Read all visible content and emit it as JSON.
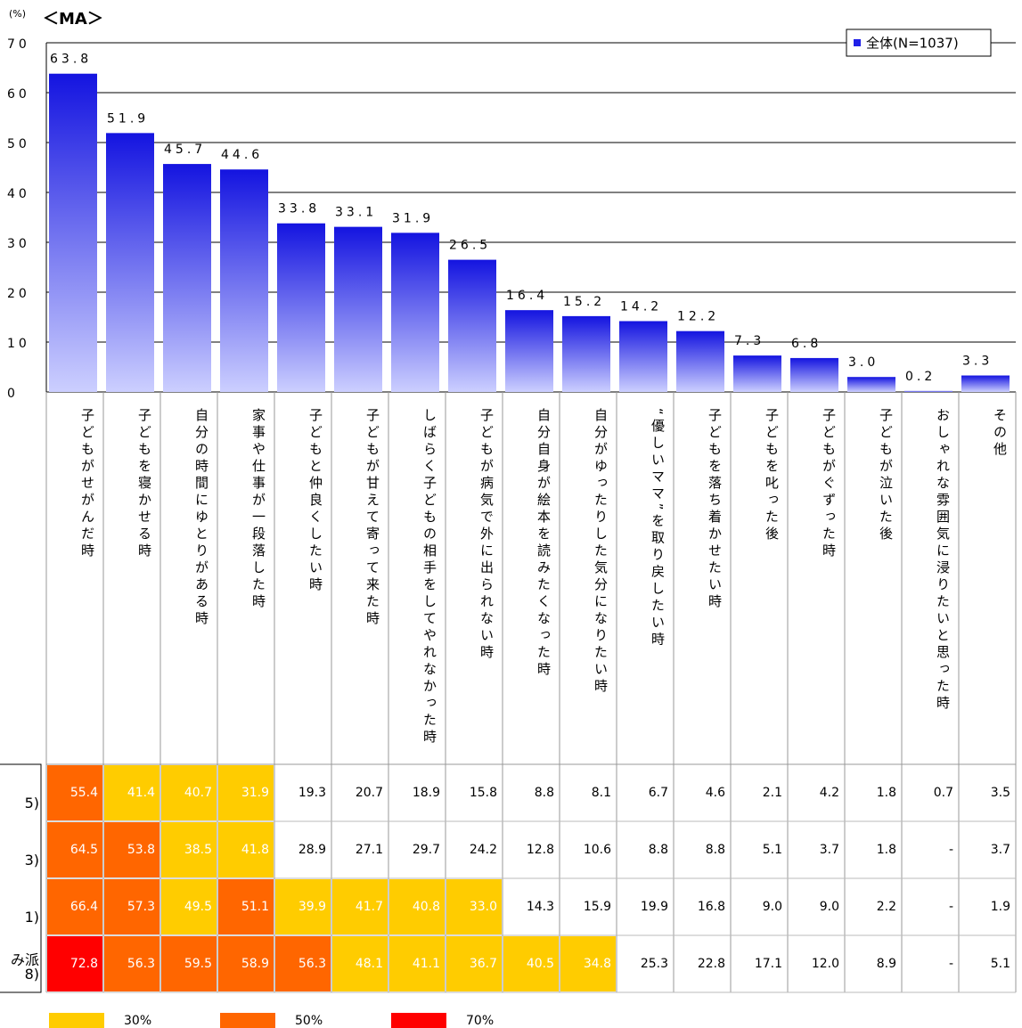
{
  "chart_data": {
    "type": "bar",
    "unit_label": "(%)",
    "subtitle": "＜MA＞",
    "categories": [
      "子どもがせがんだ時",
      "子どもを寝かせる時",
      "自分の時間にゆとりがある時",
      "家事や仕事が一段落した時",
      "子どもと仲良くしたい時",
      "子どもが甘えて寄って来た時",
      "しばらく子どもの相手をしてやれなかった時",
      "子どもが病気で外に出られない時",
      "自分自身が絵本を読みたくなった時",
      "自分がゆったりした気分になりたい時",
      "“優しいママ”を取り戻したい時",
      "子どもを落ち着かせたい時",
      "子どもを叱った後",
      "子どもがぐずった時",
      "子どもが泣いた後",
      "おしゃれな雰囲気に浸りたいと思った時",
      "その他"
    ],
    "series": [
      {
        "name": "全体(N=1037)",
        "color": "#2020e8",
        "values": [
          63.8,
          51.9,
          45.7,
          44.6,
          33.8,
          33.1,
          31.9,
          26.5,
          16.4,
          15.2,
          14.2,
          12.2,
          7.3,
          6.8,
          3.0,
          0.2,
          3.3
        ],
        "value_labels": [
          "63.8",
          "51.9",
          "45.7",
          "44.6",
          "33.8",
          "33.1",
          "31.9",
          "26.5",
          "16.4",
          "15.2",
          "14.2",
          "12.2",
          "7.3",
          "6.8",
          "3.0",
          "0.2",
          "3.3"
        ]
      }
    ],
    "ylim": [
      0,
      70
    ],
    "yticks": [
      0,
      10,
      20,
      30,
      40,
      50,
      60,
      70
    ],
    "grid": true,
    "legend": "top-right"
  },
  "table": {
    "rows": [
      {
        "label": [
          "5)"
        ],
        "cells": [
          "55.4",
          "41.4",
          "40.7",
          "31.9",
          "19.3",
          "20.7",
          "18.9",
          "15.8",
          "8.8",
          "8.1",
          "6.7",
          "4.6",
          "2.1",
          "4.2",
          "1.8",
          "0.7",
          "3.5"
        ]
      },
      {
        "label": [
          "3)"
        ],
        "cells": [
          "64.5",
          "53.8",
          "38.5",
          "41.8",
          "28.9",
          "27.1",
          "29.7",
          "24.2",
          "12.8",
          "10.6",
          "8.8",
          "8.8",
          "5.1",
          "3.7",
          "1.8",
          "-",
          "3.7"
        ]
      },
      {
        "label": [
          "1)"
        ],
        "cells": [
          "66.4",
          "57.3",
          "49.5",
          "51.1",
          "39.9",
          "41.7",
          "40.8",
          "33.0",
          "14.3",
          "15.9",
          "19.9",
          "16.8",
          "9.0",
          "9.0",
          "2.2",
          "-",
          "1.9"
        ]
      },
      {
        "label": [
          "み派",
          "8)"
        ],
        "cells": [
          "72.8",
          "56.3",
          "59.5",
          "58.9",
          "56.3",
          "48.1",
          "41.1",
          "36.7",
          "40.5",
          "34.8",
          "25.3",
          "22.8",
          "17.1",
          "12.0",
          "8.9",
          "-",
          "5.1"
        ]
      }
    ],
    "scale": [
      {
        "value": 30,
        "label": "30%",
        "color": "#ffcc00"
      },
      {
        "value": 50,
        "label": "50%",
        "color": "#ff6600"
      },
      {
        "value": 70,
        "label": "70%",
        "color": "#ff0000"
      }
    ]
  }
}
